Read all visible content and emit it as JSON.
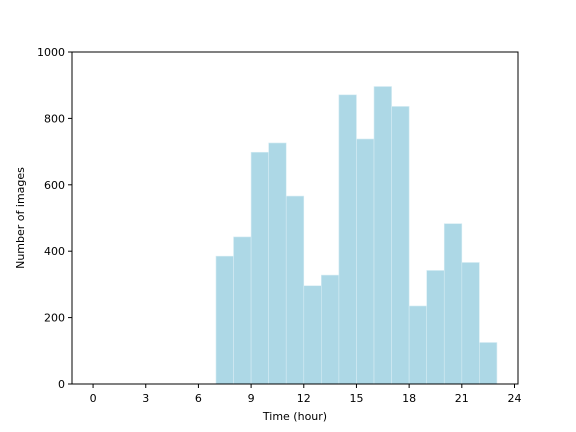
{
  "chart_data": {
    "type": "bar",
    "title": "",
    "xlabel": "Time (hour)",
    "ylabel": "Number of images",
    "bin_width": 1,
    "bins": [
      {
        "x0": 7,
        "x1": 8,
        "value": 385
      },
      {
        "x0": 8,
        "x1": 9,
        "value": 443
      },
      {
        "x0": 9,
        "x1": 10,
        "value": 698
      },
      {
        "x0": 10,
        "x1": 11,
        "value": 726
      },
      {
        "x0": 11,
        "x1": 12,
        "value": 566
      },
      {
        "x0": 12,
        "x1": 13,
        "value": 296
      },
      {
        "x0": 13,
        "x1": 14,
        "value": 328
      },
      {
        "x0": 14,
        "x1": 15,
        "value": 871
      },
      {
        "x0": 15,
        "x1": 16,
        "value": 738
      },
      {
        "x0": 16,
        "x1": 17,
        "value": 896
      },
      {
        "x0": 17,
        "x1": 18,
        "value": 836
      },
      {
        "x0": 18,
        "x1": 19,
        "value": 235
      },
      {
        "x0": 19,
        "x1": 20,
        "value": 342
      },
      {
        "x0": 20,
        "x1": 21,
        "value": 483
      },
      {
        "x0": 21,
        "x1": 22,
        "value": 366
      },
      {
        "x0": 22,
        "x1": 23,
        "value": 125
      }
    ],
    "xlim": [
      -1.2,
      24.2
    ],
    "ylim": [
      0,
      1000
    ],
    "xticks": [
      0,
      3,
      6,
      9,
      12,
      15,
      18,
      21,
      24
    ],
    "yticks": [
      0,
      200,
      400,
      600,
      800,
      1000
    ],
    "grid": false,
    "colors": {
      "bar": "#add8e6",
      "bar_edge": "#d6ecf3",
      "axis": "#000000"
    }
  }
}
